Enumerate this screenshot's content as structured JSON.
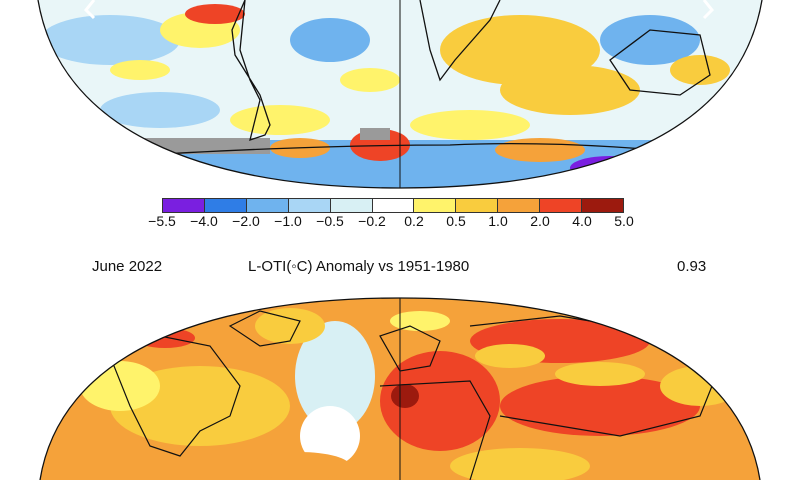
{
  "top_map": {
    "nav_prev_icon": "chevron-left-icon",
    "nav_next_icon": "chevron-right-icon"
  },
  "colorbar": {
    "ticks": [
      "−5.5",
      "−4.0",
      "−2.0",
      "−1.0",
      "−0.5",
      "−0.2",
      "0.2",
      "0.5",
      "1.0",
      "2.0",
      "4.0",
      "5.0"
    ],
    "colors": [
      "#7a1fe0",
      "#2f7de6",
      "#6fb3ee",
      "#a9d6f5",
      "#d8f0f4",
      "#ffffff",
      "#fff36b",
      "#f9cc3e",
      "#f5a23a",
      "#ee4426",
      "#9c1a0e"
    ]
  },
  "bottom_map": {
    "date": "June 2022",
    "title": "L-OTI(◦C) Anomaly vs 1951-1980",
    "global_mean": "0.93"
  }
}
